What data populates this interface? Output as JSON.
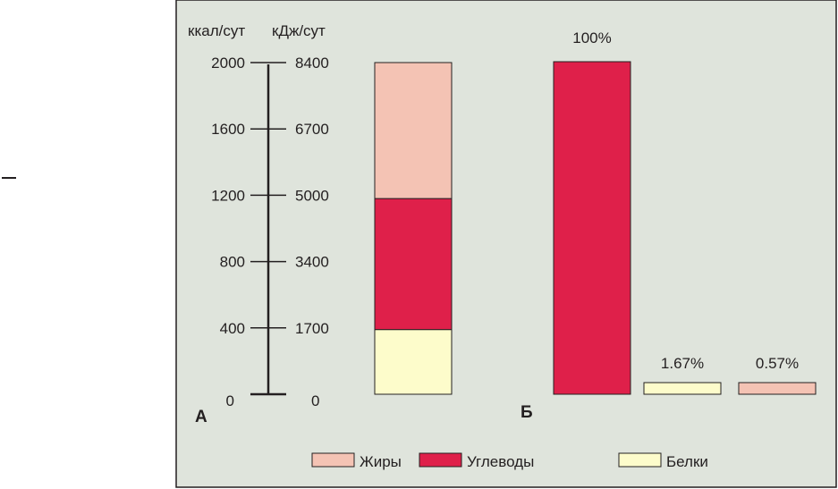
{
  "colors": {
    "background": "#dfe4dc",
    "frame": "#231f20",
    "fats": "#f4c3b4",
    "carbs": "#df204a",
    "proteins": "#fdfccb"
  },
  "chart_data": {
    "type": "bar",
    "axis": {
      "left_unit": "ккал/сут",
      "right_unit": "кДж/сут",
      "ylim": [
        0,
        2000
      ],
      "ticks": [
        {
          "kcal": "2000",
          "kj": "8400",
          "value": 2000
        },
        {
          "kcal": "1600",
          "kj": "6700",
          "value": 1600
        },
        {
          "kcal": "1200",
          "kj": "5000",
          "value": 1200
        },
        {
          "kcal": "800",
          "kj": "3400",
          "value": 800
        },
        {
          "kcal": "400",
          "kj": "1700",
          "value": 400
        },
        {
          "kcal": "0",
          "kj": "0",
          "value": 0
        }
      ]
    },
    "panel_a": {
      "label": "А",
      "stack": [
        {
          "name": "Белки",
          "from": 0,
          "to": 390,
          "color": "#fdfccb"
        },
        {
          "name": "Углеводы",
          "from": 390,
          "to": 1180,
          "color": "#df204a"
        },
        {
          "name": "Жиры",
          "from": 1180,
          "to": 2000,
          "color": "#f4c3b4"
        }
      ]
    },
    "panel_b": {
      "label": "Б",
      "bars": [
        {
          "value": 100,
          "label": "100%",
          "color": "#df204a"
        },
        {
          "value": 1.67,
          "label": "1.67%",
          "color": "#fdfccb"
        },
        {
          "value": 0.57,
          "label": "0.57%",
          "color": "#f4c3b4"
        }
      ]
    },
    "legend": {
      "placement": "bottom",
      "items": [
        {
          "name": "Жиры",
          "color": "#f4c3b4"
        },
        {
          "name": "Углеводы",
          "color": "#df204a"
        },
        {
          "name": "Белки",
          "color": "#fdfccb"
        }
      ]
    }
  }
}
